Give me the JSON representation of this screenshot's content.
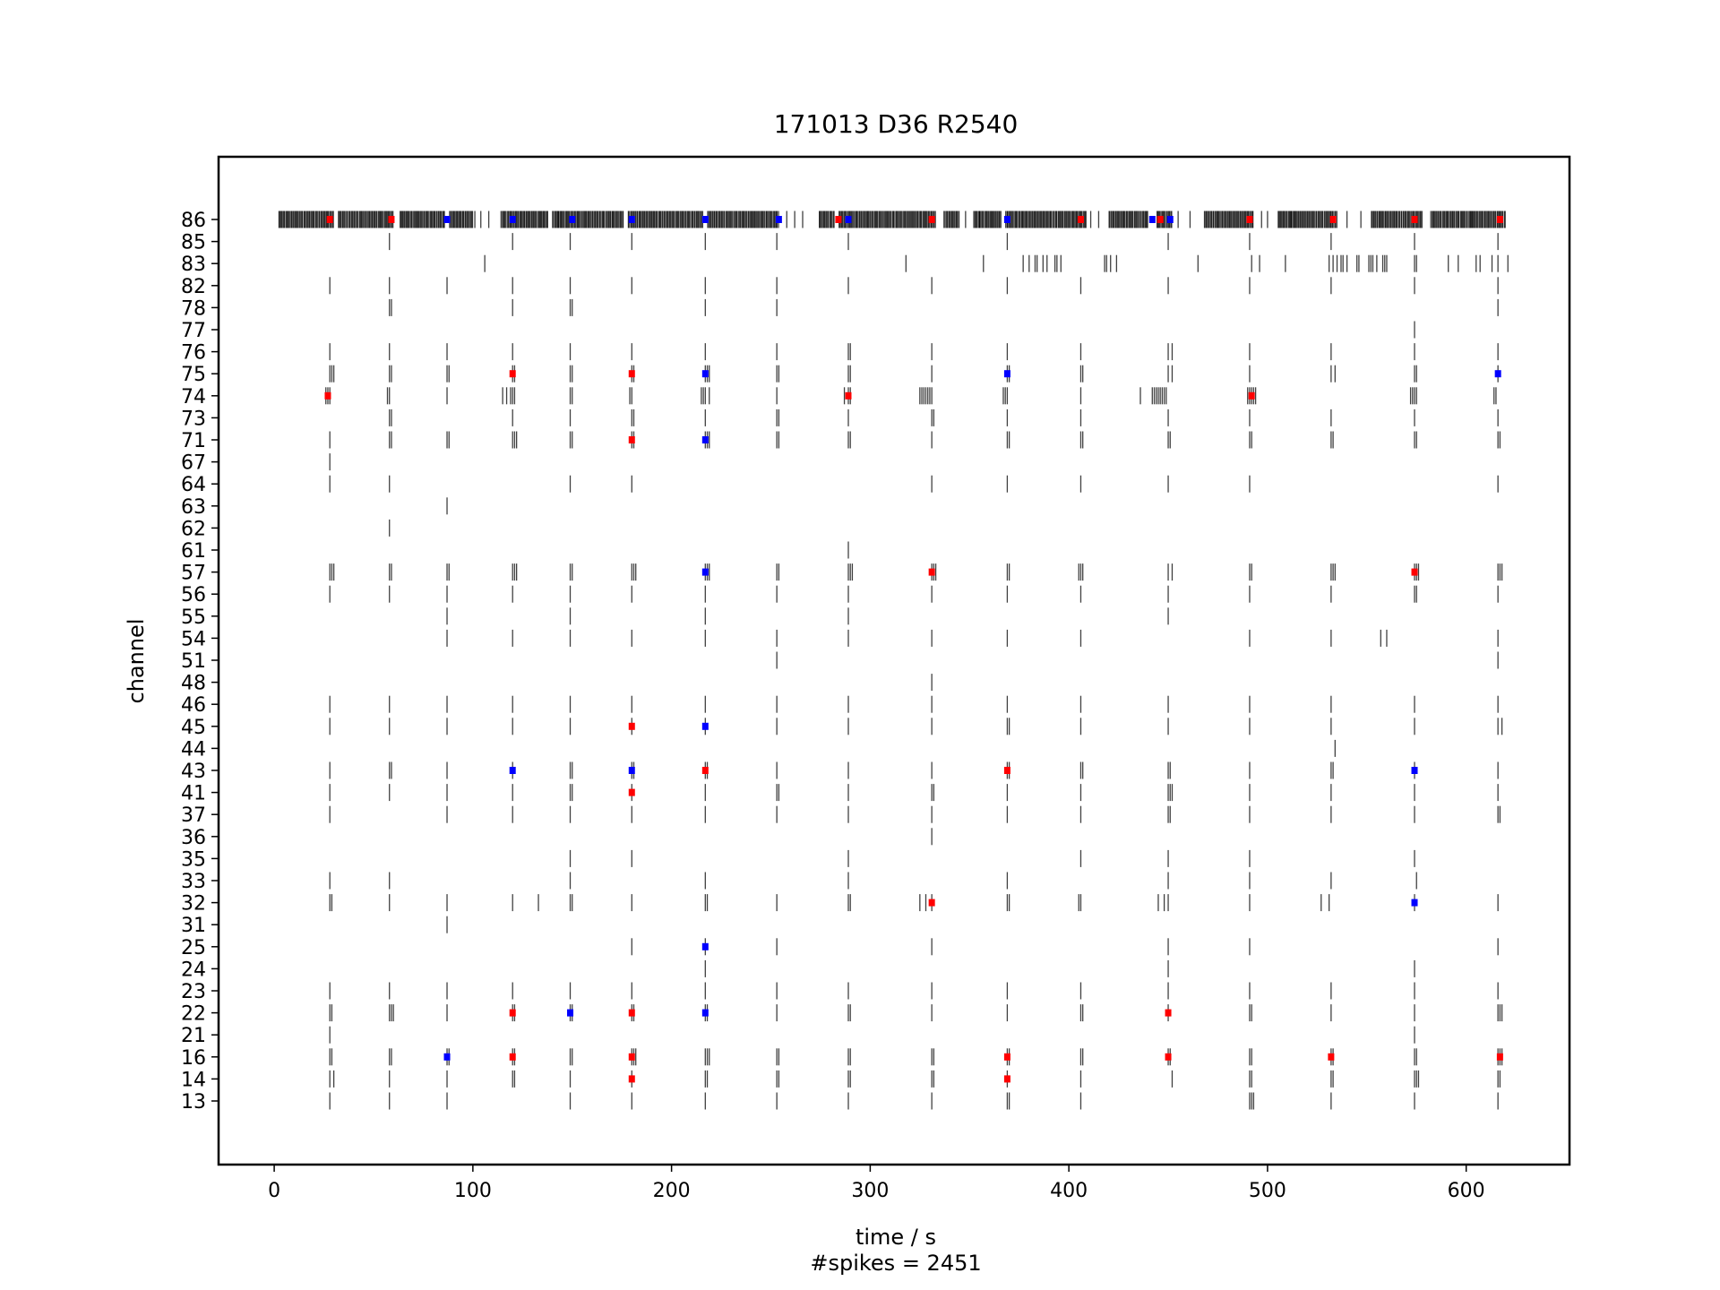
{
  "chart_data": {
    "type": "raster",
    "title": "171013 D36 R2540",
    "xlabel": "time / s",
    "ylabel": "channel",
    "footer": "#spikes = 2451",
    "xlim": [
      -28,
      652
    ],
    "x_ticks": [
      0,
      100,
      200,
      300,
      400,
      500,
      600
    ],
    "channels": [
      "86",
      "85",
      "83",
      "82",
      "78",
      "77",
      "76",
      "75",
      "74",
      "73",
      "71",
      "67",
      "64",
      "63",
      "62",
      "61",
      "57",
      "56",
      "55",
      "54",
      "51",
      "48",
      "46",
      "45",
      "44",
      "43",
      "41",
      "37",
      "36",
      "35",
      "33",
      "32",
      "31",
      "25",
      "24",
      "23",
      "22",
      "21",
      "16",
      "14",
      "13"
    ],
    "grid": false,
    "colors": {
      "spike": "#000000",
      "marker_red": "#ff0000",
      "marker_blue": "#0000ff",
      "frame": "#000000"
    },
    "burst_times": [
      28,
      58,
      87,
      120,
      149,
      180,
      217,
      253,
      289,
      331,
      369,
      406,
      450,
      491,
      532,
      574,
      616
    ],
    "spike_trains": {
      "86": {
        "dense_ranges": [
          [
            2,
            30
          ],
          [
            32,
            60
          ],
          [
            63,
            86
          ],
          [
            88,
            100
          ],
          [
            114,
            138
          ],
          [
            140,
            176
          ],
          [
            178,
            216
          ],
          [
            218,
            254
          ],
          [
            274,
            282
          ],
          [
            284,
            333
          ],
          [
            337,
            345
          ],
          [
            352,
            366
          ],
          [
            368,
            409
          ],
          [
            420,
            440
          ],
          [
            444,
            452
          ],
          [
            468,
            493
          ],
          [
            505,
            535
          ],
          [
            552,
            578
          ],
          [
            582,
            620
          ]
        ],
        "times": [
          101,
          104,
          108,
          143,
          258,
          262,
          266,
          348,
          355,
          411,
          415,
          455,
          461,
          497,
          500,
          512,
          540,
          547,
          603
        ]
      },
      "85": {
        "times": [
          58,
          120,
          149,
          180,
          217,
          253,
          289,
          369,
          450,
          491,
          532,
          574,
          616
        ]
      },
      "83": {
        "times": [
          106,
          318,
          357,
          377,
          380,
          383,
          384,
          387,
          389,
          393,
          394,
          396,
          418,
          419,
          421,
          424,
          465,
          492,
          496,
          509,
          531,
          533,
          535,
          537,
          538,
          540,
          545,
          546,
          551,
          552,
          553,
          555,
          558,
          559,
          560,
          574,
          575,
          591,
          596,
          605,
          607,
          613,
          616,
          621
        ]
      },
      "82": {
        "times": [
          28,
          58,
          87,
          120,
          149,
          180,
          217,
          253,
          289,
          331,
          369,
          406,
          450,
          491,
          532,
          574,
          616
        ]
      },
      "78": {
        "times": [
          58,
          59,
          120,
          149,
          150,
          217,
          253,
          616
        ]
      },
      "77": {
        "times": [
          574
        ]
      },
      "76": {
        "times": [
          28,
          58,
          87,
          120,
          149,
          180,
          217,
          253,
          289,
          290,
          331,
          369,
          406,
          450,
          452,
          491,
          532,
          574,
          616
        ]
      },
      "75": {
        "times": [
          28,
          29,
          30,
          58,
          59,
          87,
          88,
          120,
          121,
          149,
          150,
          180,
          181,
          217,
          218,
          219,
          253,
          254,
          289,
          290,
          331,
          369,
          370,
          406,
          407,
          450,
          452,
          491,
          532,
          534,
          574,
          575,
          616
        ]
      },
      "74": {
        "times": [
          26,
          27,
          28,
          57,
          58,
          87,
          115,
          117,
          119,
          120,
          121,
          149,
          150,
          179,
          180,
          215,
          216,
          217,
          219,
          253,
          287,
          289,
          290,
          325,
          326,
          327,
          328,
          329,
          330,
          331,
          367,
          368,
          369,
          406,
          436,
          442,
          443,
          444,
          445,
          446,
          447,
          448,
          449,
          490,
          491,
          492,
          493,
          494,
          572,
          573,
          574,
          575,
          614,
          615
        ]
      },
      "73": {
        "times": [
          58,
          59,
          120,
          149,
          180,
          181,
          217,
          253,
          254,
          289,
          331,
          332,
          369,
          406,
          450,
          491,
          532,
          574,
          616
        ]
      },
      "71": {
        "times": [
          28,
          58,
          59,
          87,
          88,
          120,
          121,
          122,
          149,
          150,
          180,
          181,
          217,
          218,
          219,
          253,
          254,
          289,
          290,
          331,
          369,
          370,
          406,
          407,
          450,
          451,
          491,
          492,
          532,
          533,
          574,
          575,
          616,
          617
        ]
      },
      "67": {
        "times": [
          28
        ]
      },
      "64": {
        "times": [
          28,
          58,
          149,
          180,
          331,
          369,
          406,
          450,
          491,
          616
        ]
      },
      "63": {
        "times": [
          87
        ]
      },
      "62": {
        "times": [
          58
        ]
      },
      "61": {
        "times": [
          289
        ]
      },
      "57": {
        "times": [
          28,
          29,
          30,
          58,
          59,
          87,
          88,
          120,
          121,
          122,
          149,
          150,
          180,
          181,
          182,
          217,
          218,
          219,
          253,
          254,
          289,
          290,
          291,
          331,
          332,
          333,
          369,
          370,
          405,
          406,
          407,
          450,
          452,
          491,
          492,
          532,
          533,
          534,
          574,
          575,
          576,
          616,
          617,
          618
        ]
      },
      "56": {
        "times": [
          28,
          58,
          87,
          120,
          149,
          180,
          217,
          253,
          289,
          331,
          369,
          406,
          450,
          491,
          532,
          574,
          575,
          616
        ]
      },
      "55": {
        "times": [
          87,
          149,
          217,
          289,
          450
        ]
      },
      "54": {
        "times": [
          87,
          120,
          149,
          180,
          217,
          253,
          289,
          331,
          369,
          406,
          491,
          532,
          557,
          560,
          616
        ]
      },
      "51": {
        "times": [
          253,
          616
        ]
      },
      "48": {
        "times": [
          331
        ]
      },
      "46": {
        "times": [
          28,
          58,
          87,
          120,
          149,
          180,
          217,
          253,
          289,
          331,
          369,
          406,
          450,
          491,
          532,
          574,
          616
        ]
      },
      "45": {
        "times": [
          28,
          58,
          87,
          120,
          149,
          180,
          217,
          253,
          289,
          331,
          369,
          370,
          406,
          450,
          491,
          532,
          574,
          616,
          618
        ]
      },
      "44": {
        "times": [
          534
        ]
      },
      "43": {
        "times": [
          28,
          58,
          59,
          87,
          120,
          149,
          150,
          180,
          181,
          217,
          218,
          253,
          289,
          331,
          369,
          370,
          406,
          407,
          450,
          451,
          491,
          532,
          533,
          574,
          616
        ]
      },
      "41": {
        "times": [
          28,
          58,
          87,
          120,
          149,
          150,
          180,
          217,
          253,
          254,
          289,
          331,
          332,
          369,
          406,
          450,
          451,
          452,
          491,
          532,
          574,
          616
        ]
      },
      "37": {
        "times": [
          28,
          87,
          120,
          149,
          180,
          217,
          253,
          289,
          331,
          369,
          406,
          450,
          451,
          491,
          532,
          574,
          616,
          617
        ]
      },
      "36": {
        "times": [
          331
        ]
      },
      "35": {
        "times": [
          149,
          180,
          289,
          406,
          450,
          491,
          574
        ]
      },
      "33": {
        "times": [
          28,
          58,
          149,
          217,
          289,
          369,
          450,
          491,
          532,
          575
        ]
      },
      "32": {
        "times": [
          28,
          29,
          58,
          87,
          120,
          133,
          149,
          150,
          180,
          217,
          218,
          253,
          289,
          290,
          325,
          328,
          331,
          369,
          370,
          405,
          406,
          445,
          448,
          450,
          491,
          527,
          531,
          574,
          616
        ]
      },
      "31": {
        "times": [
          87
        ]
      },
      "25": {
        "times": [
          180,
          217,
          253,
          331,
          450,
          491,
          616
        ]
      },
      "24": {
        "times": [
          217,
          450,
          574
        ]
      },
      "23": {
        "times": [
          28,
          58,
          87,
          120,
          149,
          180,
          217,
          253,
          289,
          331,
          369,
          406,
          450,
          491,
          532,
          574,
          616
        ]
      },
      "22": {
        "times": [
          28,
          29,
          58,
          59,
          60,
          87,
          120,
          121,
          149,
          150,
          180,
          181,
          217,
          218,
          253,
          289,
          290,
          331,
          369,
          406,
          407,
          450,
          491,
          492,
          532,
          574,
          616,
          617,
          618
        ]
      },
      "21": {
        "times": [
          28,
          574
        ]
      },
      "16": {
        "times": [
          28,
          29,
          58,
          59,
          87,
          88,
          120,
          121,
          149,
          150,
          180,
          181,
          182,
          217,
          218,
          219,
          253,
          254,
          289,
          290,
          331,
          332,
          369,
          370,
          406,
          407,
          450,
          451,
          491,
          492,
          532,
          533,
          574,
          575,
          616,
          617,
          618
        ]
      },
      "14": {
        "times": [
          28,
          30,
          58,
          87,
          120,
          121,
          149,
          180,
          217,
          218,
          253,
          254,
          289,
          290,
          331,
          332,
          369,
          406,
          452,
          491,
          492,
          532,
          533,
          574,
          575,
          576,
          616,
          617
        ]
      },
      "13": {
        "times": [
          28,
          58,
          87,
          149,
          180,
          217,
          253,
          289,
          331,
          369,
          370,
          406,
          491,
          492,
          493,
          532,
          574,
          616
        ]
      }
    },
    "markers": [
      {
        "channel": "86",
        "t": 28,
        "color": "red"
      },
      {
        "channel": "86",
        "t": 59,
        "color": "red"
      },
      {
        "channel": "86",
        "t": 87,
        "color": "blue"
      },
      {
        "channel": "86",
        "t": 120,
        "color": "blue"
      },
      {
        "channel": "86",
        "t": 150,
        "color": "blue"
      },
      {
        "channel": "86",
        "t": 180,
        "color": "blue"
      },
      {
        "channel": "86",
        "t": 217,
        "color": "blue"
      },
      {
        "channel": "86",
        "t": 254,
        "color": "blue"
      },
      {
        "channel": "86",
        "t": 284,
        "color": "red"
      },
      {
        "channel": "86",
        "t": 289,
        "color": "blue"
      },
      {
        "channel": "86",
        "t": 331,
        "color": "red"
      },
      {
        "channel": "86",
        "t": 369,
        "color": "blue"
      },
      {
        "channel": "86",
        "t": 406,
        "color": "red"
      },
      {
        "channel": "86",
        "t": 442,
        "color": "blue"
      },
      {
        "channel": "86",
        "t": 446,
        "color": "red"
      },
      {
        "channel": "86",
        "t": 451,
        "color": "blue"
      },
      {
        "channel": "86",
        "t": 491,
        "color": "red"
      },
      {
        "channel": "86",
        "t": 533,
        "color": "red"
      },
      {
        "channel": "86",
        "t": 574,
        "color": "red"
      },
      {
        "channel": "86",
        "t": 617,
        "color": "red"
      },
      {
        "channel": "75",
        "t": 120,
        "color": "red"
      },
      {
        "channel": "75",
        "t": 180,
        "color": "red"
      },
      {
        "channel": "75",
        "t": 217,
        "color": "blue"
      },
      {
        "channel": "75",
        "t": 369,
        "color": "blue"
      },
      {
        "channel": "75",
        "t": 616,
        "color": "blue"
      },
      {
        "channel": "74",
        "t": 27,
        "color": "red"
      },
      {
        "channel": "74",
        "t": 289,
        "color": "red"
      },
      {
        "channel": "74",
        "t": 492,
        "color": "red"
      },
      {
        "channel": "71",
        "t": 180,
        "color": "red"
      },
      {
        "channel": "71",
        "t": 217,
        "color": "blue"
      },
      {
        "channel": "57",
        "t": 217,
        "color": "blue"
      },
      {
        "channel": "57",
        "t": 331,
        "color": "red"
      },
      {
        "channel": "57",
        "t": 574,
        "color": "red"
      },
      {
        "channel": "45",
        "t": 180,
        "color": "red"
      },
      {
        "channel": "45",
        "t": 217,
        "color": "blue"
      },
      {
        "channel": "43",
        "t": 120,
        "color": "blue"
      },
      {
        "channel": "43",
        "t": 180,
        "color": "blue"
      },
      {
        "channel": "43",
        "t": 217,
        "color": "red"
      },
      {
        "channel": "43",
        "t": 369,
        "color": "red"
      },
      {
        "channel": "43",
        "t": 574,
        "color": "blue"
      },
      {
        "channel": "41",
        "t": 180,
        "color": "red"
      },
      {
        "channel": "32",
        "t": 331,
        "color": "red"
      },
      {
        "channel": "32",
        "t": 574,
        "color": "blue"
      },
      {
        "channel": "25",
        "t": 217,
        "color": "blue"
      },
      {
        "channel": "22",
        "t": 120,
        "color": "red"
      },
      {
        "channel": "22",
        "t": 149,
        "color": "blue"
      },
      {
        "channel": "22",
        "t": 180,
        "color": "red"
      },
      {
        "channel": "22",
        "t": 217,
        "color": "blue"
      },
      {
        "channel": "22",
        "t": 450,
        "color": "red"
      },
      {
        "channel": "16",
        "t": 87,
        "color": "blue"
      },
      {
        "channel": "16",
        "t": 120,
        "color": "red"
      },
      {
        "channel": "16",
        "t": 180,
        "color": "red"
      },
      {
        "channel": "16",
        "t": 369,
        "color": "red"
      },
      {
        "channel": "16",
        "t": 450,
        "color": "red"
      },
      {
        "channel": "16",
        "t": 532,
        "color": "red"
      },
      {
        "channel": "16",
        "t": 617,
        "color": "red"
      },
      {
        "channel": "14",
        "t": 180,
        "color": "red"
      },
      {
        "channel": "14",
        "t": 369,
        "color": "red"
      }
    ]
  }
}
